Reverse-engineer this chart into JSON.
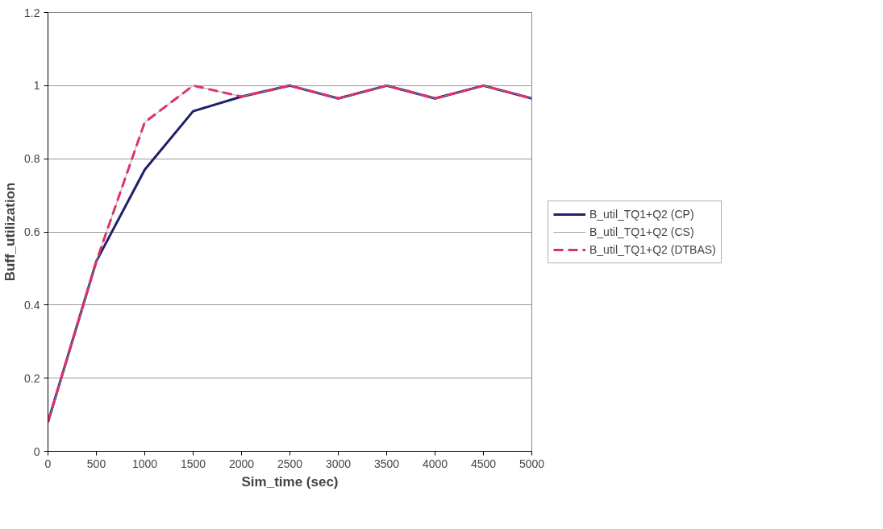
{
  "chart_data": {
    "type": "line",
    "xlabel": "Sim_time (sec)",
    "ylabel": "Buff_utilization",
    "x": [
      0,
      500,
      1000,
      1500,
      2000,
      2500,
      3000,
      3500,
      4000,
      4500,
      5000
    ],
    "series": [
      {
        "name": "B_util_TQ1+Q2 (CP)",
        "color": "#1f1f6b",
        "line_style": "solid",
        "values": [
          0.08,
          0.52,
          0.77,
          0.93,
          0.97,
          1.0,
          0.965,
          1.0,
          0.965,
          1.0,
          0.965
        ]
      },
      {
        "name": "B_util_TQ1+Q2 (CS)",
        "color": "#9aa89a",
        "line_style": "solid",
        "values": [
          0.08,
          0.52,
          0.9,
          1.0,
          0.97,
          1.0,
          0.965,
          1.0,
          0.965,
          1.0,
          0.965
        ]
      },
      {
        "name": "B_util_TQ1+Q2 (DTBAS)",
        "color": "#e0306a",
        "line_style": "dashed",
        "values": [
          0.08,
          0.52,
          0.9,
          1.0,
          0.97,
          1.0,
          0.965,
          1.0,
          0.965,
          1.0,
          0.965
        ]
      }
    ],
    "xlim": [
      0,
      5000
    ],
    "xticks": [
      0,
      500,
      1000,
      1500,
      2000,
      2500,
      3000,
      3500,
      4000,
      4500,
      5000
    ],
    "ylim": [
      0,
      1.2
    ],
    "yticks": [
      0,
      0.2,
      0.4,
      0.6,
      0.8,
      1,
      1.2
    ],
    "grid": "y",
    "legend": "right",
    "marker": "none"
  }
}
